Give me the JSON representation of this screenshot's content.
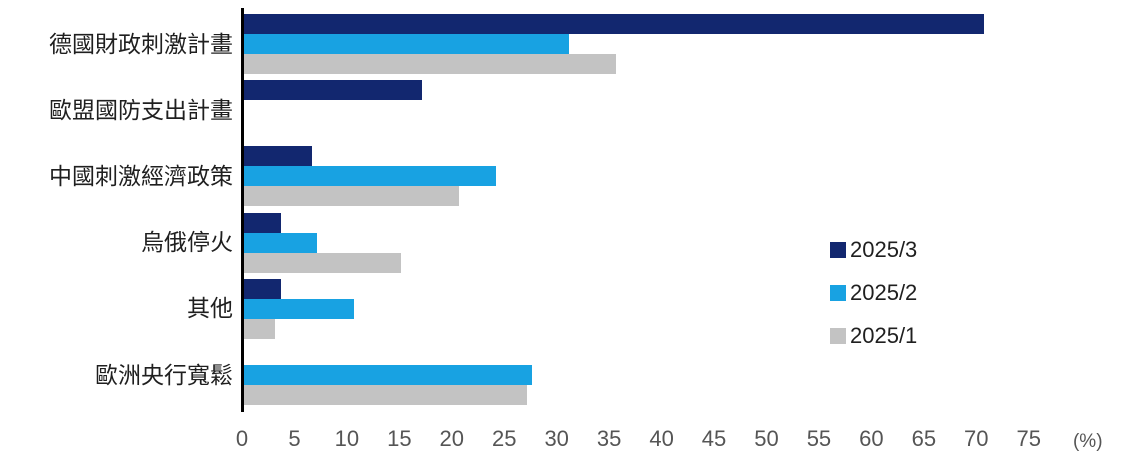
{
  "chart_data": {
    "type": "bar",
    "orientation": "horizontal",
    "title": "",
    "xlabel": "",
    "ylabel": "",
    "x_unit_label": "(%)",
    "xlim": [
      0,
      75
    ],
    "xticks": [
      0,
      5,
      10,
      15,
      20,
      25,
      30,
      35,
      40,
      45,
      50,
      55,
      60,
      65,
      70,
      75
    ],
    "grid": false,
    "legend_position": "right-middle",
    "categories": [
      "德國財政刺激計畫",
      "歐盟國防支出計畫",
      "中國刺激經濟政策",
      "烏俄停火",
      "其他",
      "歐洲央行寬鬆"
    ],
    "series": [
      {
        "name": "2025/3",
        "color": "#12276F",
        "values": [
          70.5,
          17,
          6.5,
          3.5,
          3.5,
          0
        ]
      },
      {
        "name": "2025/2",
        "color": "#18A2E2",
        "values": [
          31,
          0,
          24,
          7,
          10.5,
          27.5
        ]
      },
      {
        "name": "2025/1",
        "color": "#C3C3C3",
        "values": [
          35.5,
          0,
          20.5,
          15,
          3,
          27
        ]
      }
    ],
    "colors": {
      "axis_line": "#000000",
      "tick_text": "#555555",
      "label_text": "#1f1f1f"
    }
  }
}
